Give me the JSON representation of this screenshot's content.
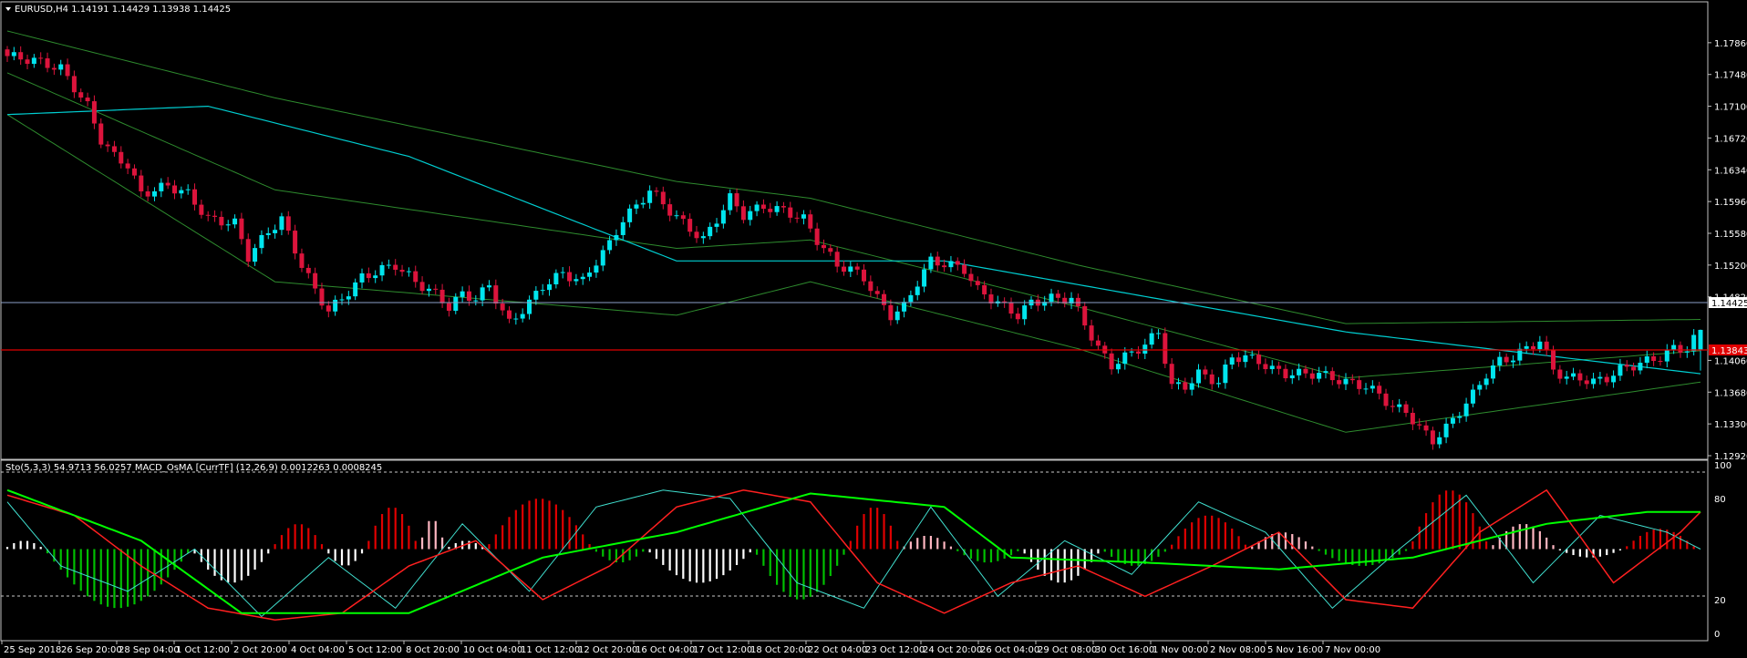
{
  "main_panel": {
    "title": "EURUSD,H4  1.14191 1.14429 1.13938 1.14425",
    "price_axis_labels": [
      "1.17860",
      "1.17480",
      "1.17100",
      "1.16720",
      "1.16340",
      "1.15960",
      "1.15580",
      "1.15200",
      "1.14820",
      "1.14060",
      "1.13680",
      "1.13300",
      "1.12920"
    ],
    "current_price_label": "1.14425",
    "level_price_label": "1.13843"
  },
  "sub_panel": {
    "title": "Sto(5,3,3) 54.9713 56.0257  MACD_OsMA [CurrTF] (12,26,9) 0.0012263 0.0008245",
    "axis_labels": [
      "100",
      "80",
      "20",
      "0"
    ]
  },
  "time_axis_labels": [
    "25 Sep 2018",
    "26 Sep 20:00",
    "28 Sep 04:00",
    "1 Oct 12:00",
    "2 Oct 20:00",
    "4 Oct 04:00",
    "5 Oct 12:00",
    "8 Oct 20:00",
    "10 Oct 04:00",
    "11 Oct 12:00",
    "12 Oct 20:00",
    "16 Oct 04:00",
    "17 Oct 12:00",
    "18 Oct 20:00",
    "22 Oct 04:00",
    "23 Oct 12:00",
    "24 Oct 20:00",
    "26 Oct 04:00",
    "29 Oct 08:00",
    "30 Oct 16:00",
    "1 Nov 00:00",
    "2 Nov 08:00",
    "5 Nov 16:00",
    "7 Nov 00:00"
  ],
  "colors": {
    "background": "#000000",
    "bull_candle": "#00E5EE",
    "bear_candle": "#DC143C",
    "bollinger": "#2E8B2E",
    "moving_average": "#00CED1",
    "price_line": "#8CA0C8",
    "level_line": "#E00000",
    "stoch_main": "#FF2020",
    "stoch_signal": "#40E0D0",
    "macd_line": "#00FF00",
    "hist_red": "#E00000",
    "hist_pink": "#FFB6C1",
    "hist_green": "#00C000",
    "hist_white": "#FFFFFF",
    "axis_text": "#FFFFFF",
    "frame": "#C0C0C0"
  },
  "chart_data": {
    "type": "candlestick",
    "symbol": "EURUSD",
    "timeframe": "H4",
    "last_bar": {
      "open": 1.14191,
      "high": 1.14429,
      "low": 1.13938,
      "close": 1.14425
    },
    "ylim": [
      1.1292,
      1.1824
    ],
    "current_price": 1.14425,
    "horizontal_level": 1.13843,
    "close_path": [
      [
        0,
        1.177
      ],
      [
        4,
        1.1765
      ],
      [
        8,
        1.1755
      ],
      [
        12,
        1.171
      ],
      [
        14,
        1.167
      ],
      [
        16,
        1.165
      ],
      [
        18,
        1.164
      ],
      [
        20,
        1.1605
      ],
      [
        24,
        1.1615
      ],
      [
        27,
        1.1605
      ],
      [
        30,
        1.1575
      ],
      [
        34,
        1.157
      ],
      [
        36,
        1.153
      ],
      [
        39,
        1.156
      ],
      [
        41,
        1.1575
      ],
      [
        44,
        1.152
      ],
      [
        46,
        1.149
      ],
      [
        48,
        1.1465
      ],
      [
        50,
        1.148
      ],
      [
        53,
        1.1505
      ],
      [
        56,
        1.1515
      ],
      [
        58,
        1.152
      ],
      [
        61,
        1.15
      ],
      [
        64,
        1.1485
      ],
      [
        66,
        1.147
      ],
      [
        68,
        1.1485
      ],
      [
        70,
        1.148
      ],
      [
        72,
        1.1495
      ],
      [
        75,
        1.145
      ],
      [
        78,
        1.1475
      ],
      [
        80,
        1.1495
      ],
      [
        83,
        1.151
      ],
      [
        86,
        1.15
      ],
      [
        88,
        1.1525
      ],
      [
        90,
        1.1545
      ],
      [
        92,
        1.1575
      ],
      [
        94,
        1.159
      ],
      [
        96,
        1.161
      ],
      [
        99,
        1.1585
      ],
      [
        101,
        1.157
      ],
      [
        104,
        1.155
      ],
      [
        106,
        1.1575
      ],
      [
        108,
        1.16
      ],
      [
        110,
        1.158
      ],
      [
        113,
        1.159
      ],
      [
        116,
        1.1585
      ],
      [
        119,
        1.1575
      ],
      [
        121,
        1.155
      ],
      [
        124,
        1.152
      ],
      [
        126,
        1.1515
      ],
      [
        128,
        1.1505
      ],
      [
        130,
        1.148
      ],
      [
        132,
        1.146
      ],
      [
        134,
        1.147
      ],
      [
        136,
        1.15
      ],
      [
        138,
        1.1525
      ],
      [
        141,
        1.152
      ],
      [
        143,
        1.1515
      ],
      [
        145,
        1.149
      ],
      [
        147,
        1.148
      ],
      [
        149,
        1.147
      ],
      [
        151,
        1.146
      ],
      [
        153,
        1.1475
      ],
      [
        156,
        1.148
      ],
      [
        159,
        1.148
      ],
      [
        161,
        1.145
      ],
      [
        163,
        1.142
      ],
      [
        165,
        1.14
      ],
      [
        167,
        1.141
      ],
      [
        170,
        1.1425
      ],
      [
        172,
        1.144
      ],
      [
        174,
        1.1375
      ],
      [
        176,
        1.1375
      ],
      [
        178,
        1.139
      ],
      [
        181,
        1.138
      ],
      [
        183,
        1.141
      ],
      [
        185,
        1.141
      ],
      [
        187,
        1.1405
      ],
      [
        189,
        1.1395
      ],
      [
        191,
        1.139
      ],
      [
        194,
        1.139
      ],
      [
        196,
        1.139
      ],
      [
        198,
        1.1385
      ],
      [
        200,
        1.138
      ],
      [
        203,
        1.1375
      ],
      [
        205,
        1.1365
      ],
      [
        207,
        1.135
      ],
      [
        209,
        1.1345
      ],
      [
        211,
        1.1325
      ],
      [
        213,
        1.131
      ],
      [
        215,
        1.1325
      ],
      [
        217,
        1.1345
      ],
      [
        219,
        1.1365
      ],
      [
        221,
        1.139
      ],
      [
        223,
        1.1405
      ],
      [
        225,
        1.141
      ],
      [
        227,
        1.142
      ],
      [
        229,
        1.143
      ],
      [
        231,
        1.1395
      ],
      [
        233,
        1.1385
      ],
      [
        235,
        1.1385
      ],
      [
        237,
        1.138
      ],
      [
        239,
        1.1385
      ],
      [
        241,
        1.1395
      ],
      [
        243,
        1.14
      ],
      [
        245,
        1.1405
      ],
      [
        247,
        1.141
      ],
      [
        249,
        1.142
      ],
      [
        251,
        1.142
      ],
      [
        253,
        1.1442
      ]
    ],
    "bollinger_upper": [
      [
        0,
        1.18
      ],
      [
        40,
        1.172
      ],
      [
        100,
        1.162
      ],
      [
        120,
        1.16
      ],
      [
        160,
        1.152
      ],
      [
        200,
        1.145
      ],
      [
        253,
        1.1455
      ]
    ],
    "bollinger_lower": [
      [
        0,
        1.17
      ],
      [
        40,
        1.15
      ],
      [
        100,
        1.146
      ],
      [
        120,
        1.15
      ],
      [
        160,
        1.142
      ],
      [
        200,
        1.132
      ],
      [
        253,
        1.138
      ]
    ],
    "moving_average": [
      [
        0,
        1.17
      ],
      [
        30,
        1.171
      ],
      [
        60,
        1.165
      ],
      [
        100,
        1.1525
      ],
      [
        140,
        1.1525
      ],
      [
        200,
        1.144
      ],
      [
        253,
        1.139
      ]
    ],
    "oscillator": {
      "ylim": [
        0,
        100
      ],
      "levels": [
        80,
        20
      ],
      "stoch_main_value": 54.9713,
      "stoch_signal_value": 56.0257,
      "macd_osma_main": 0.0012263,
      "macd_osma_signal": 0.0008245,
      "stoch_main_path": [
        [
          0,
          82
        ],
        [
          10,
          70
        ],
        [
          20,
          40
        ],
        [
          30,
          15
        ],
        [
          40,
          8
        ],
        [
          50,
          12
        ],
        [
          60,
          40
        ],
        [
          70,
          55
        ],
        [
          80,
          20
        ],
        [
          90,
          40
        ],
        [
          100,
          75
        ],
        [
          110,
          85
        ],
        [
          120,
          78
        ],
        [
          130,
          30
        ],
        [
          140,
          12
        ],
        [
          150,
          30
        ],
        [
          160,
          40
        ],
        [
          170,
          22
        ],
        [
          180,
          40
        ],
        [
          190,
          60
        ],
        [
          200,
          20
        ],
        [
          210,
          15
        ],
        [
          220,
          60
        ],
        [
          230,
          85
        ],
        [
          240,
          30
        ],
        [
          250,
          60
        ],
        [
          253,
          72
        ]
      ],
      "stoch_signal_path": [
        [
          0,
          78
        ],
        [
          8,
          40
        ],
        [
          18,
          25
        ],
        [
          28,
          50
        ],
        [
          38,
          10
        ],
        [
          48,
          45
        ],
        [
          58,
          15
        ],
        [
          68,
          65
        ],
        [
          78,
          25
        ],
        [
          88,
          75
        ],
        [
          98,
          85
        ],
        [
          108,
          80
        ],
        [
          118,
          30
        ],
        [
          128,
          15
        ],
        [
          138,
          75
        ],
        [
          148,
          22
        ],
        [
          158,
          55
        ],
        [
          168,
          35
        ],
        [
          178,
          78
        ],
        [
          188,
          60
        ],
        [
          198,
          15
        ],
        [
          208,
          50
        ],
        [
          218,
          82
        ],
        [
          228,
          30
        ],
        [
          238,
          70
        ],
        [
          248,
          60
        ],
        [
          253,
          50
        ]
      ],
      "macd_line_path": [
        [
          0,
          85
        ],
        [
          20,
          55
        ],
        [
          35,
          12
        ],
        [
          60,
          12
        ],
        [
          80,
          45
        ],
        [
          100,
          60
        ],
        [
          120,
          83
        ],
        [
          140,
          75
        ],
        [
          150,
          45
        ],
        [
          170,
          42
        ],
        [
          190,
          38
        ],
        [
          210,
          45
        ],
        [
          230,
          65
        ],
        [
          245,
          72
        ],
        [
          253,
          72
        ]
      ],
      "histogram": [
        {
          "from": 0,
          "to": 6,
          "value": 5,
          "color": "white"
        },
        {
          "from": 6,
          "to": 28,
          "value": -35,
          "color": "green"
        },
        {
          "from": 28,
          "to": 40,
          "value": -20,
          "color": "white"
        },
        {
          "from": 40,
          "to": 48,
          "value": 15,
          "color": "red"
        },
        {
          "from": 48,
          "to": 54,
          "value": -10,
          "color": "white"
        },
        {
          "from": 54,
          "to": 62,
          "value": 25,
          "color": "red"
        },
        {
          "from": 62,
          "to": 66,
          "value": 18,
          "color": "pink"
        },
        {
          "from": 66,
          "to": 72,
          "value": 5,
          "color": "white"
        },
        {
          "from": 72,
          "to": 88,
          "value": 30,
          "color": "red"
        },
        {
          "from": 88,
          "to": 96,
          "value": -8,
          "color": "green"
        },
        {
          "from": 96,
          "to": 112,
          "value": -20,
          "color": "white"
        },
        {
          "from": 112,
          "to": 126,
          "value": -30,
          "color": "green"
        },
        {
          "from": 126,
          "to": 134,
          "value": 25,
          "color": "red"
        },
        {
          "from": 134,
          "to": 142,
          "value": 8,
          "color": "pink"
        },
        {
          "from": 142,
          "to": 152,
          "value": -8,
          "color": "green"
        },
        {
          "from": 152,
          "to": 164,
          "value": -20,
          "color": "white"
        },
        {
          "from": 164,
          "to": 174,
          "value": -10,
          "color": "green"
        },
        {
          "from": 174,
          "to": 186,
          "value": 20,
          "color": "red"
        },
        {
          "from": 186,
          "to": 196,
          "value": 10,
          "color": "pink"
        },
        {
          "from": 196,
          "to": 210,
          "value": -10,
          "color": "green"
        },
        {
          "from": 210,
          "to": 222,
          "value": 35,
          "color": "red"
        },
        {
          "from": 222,
          "to": 232,
          "value": 15,
          "color": "pink"
        },
        {
          "from": 232,
          "to": 242,
          "value": -5,
          "color": "white"
        },
        {
          "from": 242,
          "to": 253,
          "value": 12,
          "color": "red"
        }
      ]
    }
  }
}
